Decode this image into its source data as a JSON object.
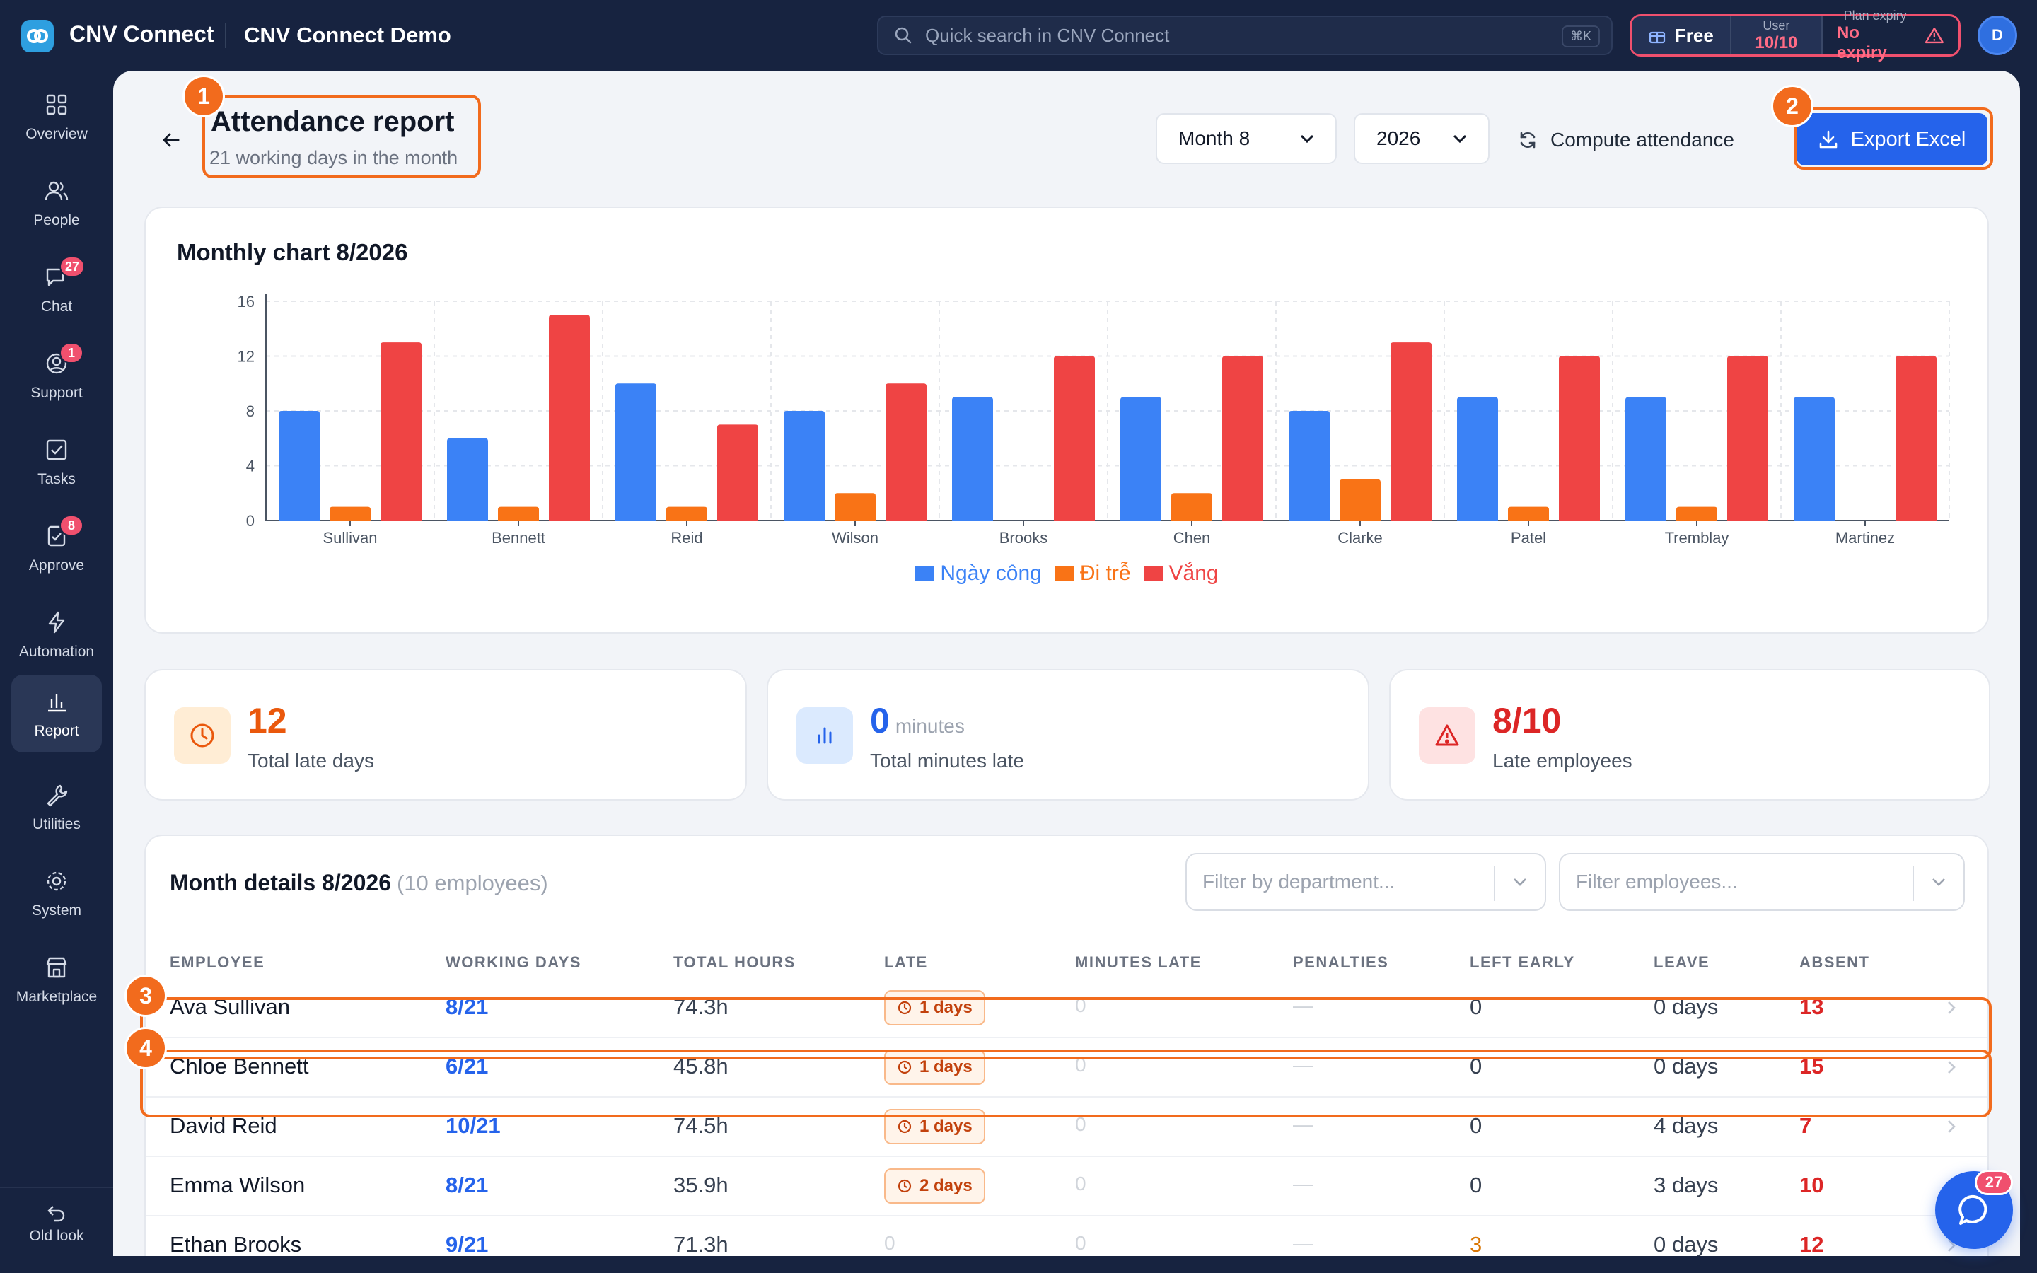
{
  "header": {
    "app_name": "CNV Connect",
    "workspace": "CNV Connect Demo",
    "search_placeholder": "Quick search in CNV Connect",
    "search_shortcut": "⌘K",
    "plan_label": "Free",
    "user_label": "User",
    "user_value": "10/10",
    "expiry_label": "Plan expiry",
    "expiry_value": "No expiry",
    "avatar_initial": "D"
  },
  "sidebar": {
    "items": [
      {
        "label": "Overview",
        "icon": "grid-icon"
      },
      {
        "label": "People",
        "icon": "users-icon"
      },
      {
        "label": "Chat",
        "icon": "chat-icon",
        "badge": "27"
      },
      {
        "label": "Support",
        "icon": "support-icon",
        "badge": "1"
      },
      {
        "label": "Tasks",
        "icon": "checkbox-icon"
      },
      {
        "label": "Approve",
        "icon": "approve-icon",
        "badge": "8"
      },
      {
        "label": "Automation",
        "icon": "bolt-icon"
      },
      {
        "label": "Report",
        "icon": "bar-chart-icon",
        "active": true
      },
      {
        "label": "Utilities",
        "icon": "wrench-icon"
      },
      {
        "label": "System",
        "icon": "gear-icon"
      },
      {
        "label": "Marketplace",
        "icon": "store-icon"
      }
    ],
    "old_look": "Old look"
  },
  "page": {
    "title": "Attendance report",
    "subtitle": "21 working days in the month",
    "month_select": "Month 8",
    "year_select": "2026",
    "compute_label": "Compute attendance",
    "export_label": "Export Excel",
    "markers": [
      "1",
      "2",
      "3",
      "4"
    ]
  },
  "chart": {
    "title": "Monthly chart 8/2026"
  },
  "chart_data": {
    "type": "bar",
    "categories": [
      "Sullivan",
      "Bennett",
      "Reid",
      "Wilson",
      "Brooks",
      "Chen",
      "Clarke",
      "Patel",
      "Tremblay",
      "Martinez"
    ],
    "series": [
      {
        "name": "Ngày công",
        "color": "#3b82f6",
        "values": [
          8,
          6,
          10,
          8,
          9,
          9,
          8,
          9,
          9,
          9
        ]
      },
      {
        "name": "Đi trễ",
        "color": "#f97316",
        "values": [
          1,
          1,
          1,
          2,
          0,
          2,
          3,
          1,
          1,
          0
        ]
      },
      {
        "name": "Vắng",
        "color": "#ef4444",
        "values": [
          13,
          15,
          7,
          10,
          12,
          12,
          13,
          12,
          12,
          12
        ]
      }
    ],
    "yticks": [
      0,
      4,
      8,
      12,
      16
    ],
    "ylim": [
      0,
      16
    ],
    "grid": true,
    "legend": "bottom-center"
  },
  "stats": [
    {
      "value": "12",
      "unit": "",
      "label": "Total late days",
      "color": "#ea580c",
      "bg": "#ffedd5",
      "icon": "clock-icon"
    },
    {
      "value": "0",
      "unit": "minutes",
      "label": "Total minutes late",
      "color": "#2563eb",
      "bg": "#dbeafe",
      "icon": "bar-chart-icon"
    },
    {
      "value": "8/10",
      "unit": "",
      "label": "Late employees",
      "color": "#dc2626",
      "bg": "#fee2e2",
      "icon": "warning-icon"
    }
  ],
  "details": {
    "title": "Month details 8/2026",
    "count": "(10 employees)",
    "filter_department": "Filter by department...",
    "filter_employees": "Filter employees...",
    "columns": [
      "EMPLOYEE",
      "WORKING DAYS",
      "TOTAL HOURS",
      "LATE",
      "MINUTES LATE",
      "PENALTIES",
      "LEFT EARLY",
      "LEAVE",
      "ABSENT"
    ],
    "rows": [
      {
        "name": "Ava Sullivan",
        "working": "8/21",
        "hours": "74.3h",
        "late": "1 days",
        "minutes": "0",
        "penalties": "—",
        "left_early": "0",
        "leave": "0 days",
        "absent": "13"
      },
      {
        "name": "Chloe Bennett",
        "working": "6/21",
        "hours": "45.8h",
        "late": "1 days",
        "minutes": "0",
        "penalties": "—",
        "left_early": "0",
        "leave": "0 days",
        "absent": "15"
      },
      {
        "name": "David Reid",
        "working": "10/21",
        "hours": "74.5h",
        "late": "1 days",
        "minutes": "0",
        "penalties": "—",
        "left_early": "0",
        "leave": "4 days",
        "absent": "7"
      },
      {
        "name": "Emma Wilson",
        "working": "8/21",
        "hours": "35.9h",
        "late": "2 days",
        "minutes": "0",
        "penalties": "—",
        "left_early": "0",
        "leave": "3 days",
        "absent": "10"
      },
      {
        "name": "Ethan Brooks",
        "working": "9/21",
        "hours": "71.3h",
        "late": "0",
        "minutes": "0",
        "penalties": "—",
        "left_early": "3",
        "leave": "0 days",
        "absent": "12"
      }
    ]
  },
  "fab_badge": "27"
}
